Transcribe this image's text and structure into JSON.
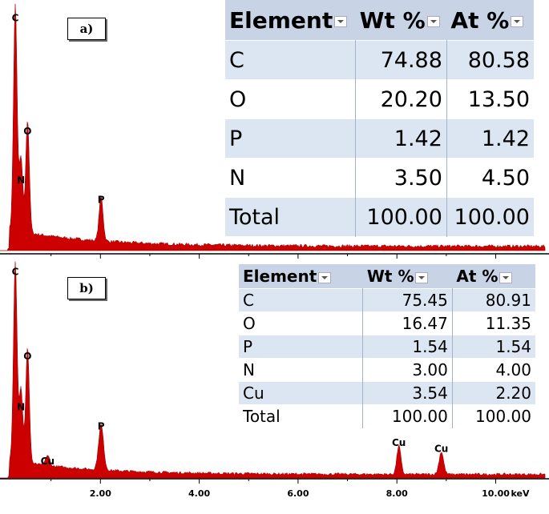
{
  "panel_a": {
    "label": "a)",
    "table": {
      "headers": [
        "Element",
        "Wt %",
        "At %"
      ],
      "rows": [
        [
          "C",
          "74.88",
          "80.58"
        ],
        [
          "O",
          "20.20",
          "13.50"
        ],
        [
          "P",
          "1.42",
          "1.42"
        ],
        [
          "N",
          "3.50",
          "4.50"
        ],
        [
          "Total",
          "100.00",
          "100.00"
        ]
      ]
    }
  },
  "panel_b": {
    "label": "b)",
    "table": {
      "headers": [
        "Element",
        "Wt %",
        "At %"
      ],
      "rows": [
        [
          "C",
          "75.45",
          "80.91"
        ],
        [
          "O",
          "16.47",
          "11.35"
        ],
        [
          "P",
          "1.54",
          "1.54"
        ],
        [
          "N",
          "3.00",
          "4.00"
        ],
        [
          "Cu",
          "3.54",
          "2.20"
        ],
        [
          "Total",
          "100.00",
          "100.00"
        ]
      ]
    }
  },
  "colors": {
    "spectrum": "#cc0000",
    "table_header": "#c8d4e6",
    "table_band": "#dce6f2"
  },
  "chart_data": [
    {
      "type": "line",
      "title": "",
      "xlabel": "",
      "ylabel": "",
      "xlim": [
        0,
        11
      ],
      "grid": false,
      "peaks": [
        {
          "label": "C",
          "x": 0.277,
          "height": 0.92,
          "width": 0.08
        },
        {
          "label": "N",
          "x": 0.392,
          "height": 0.3,
          "width": 0.08
        },
        {
          "label": "O",
          "x": 0.525,
          "height": 0.46,
          "width": 0.08
        },
        {
          "label": "P",
          "x": 2.013,
          "height": 0.18,
          "width": 0.09
        }
      ]
    },
    {
      "type": "line",
      "title": "",
      "xlabel": "keV",
      "ylabel": "",
      "xlim": [
        0,
        11
      ],
      "xticks": [
        "2.00",
        "4.00",
        "6.00",
        "8.00",
        "10.00"
      ],
      "grid": false,
      "peaks": [
        {
          "label": "C",
          "x": 0.277,
          "height": 0.97,
          "width": 0.08
        },
        {
          "label": "N",
          "x": 0.392,
          "height": 0.36,
          "width": 0.08
        },
        {
          "label": "O",
          "x": 0.525,
          "height": 0.56,
          "width": 0.08
        },
        {
          "label": "Cu",
          "x": 0.93,
          "height": 0.05,
          "width": 0.09
        },
        {
          "label": "P",
          "x": 2.013,
          "height": 0.22,
          "width": 0.11
        },
        {
          "label": "Cu",
          "x": 8.04,
          "height": 0.14,
          "width": 0.09
        },
        {
          "label": "Cu",
          "x": 8.9,
          "height": 0.11,
          "width": 0.1
        }
      ]
    }
  ]
}
